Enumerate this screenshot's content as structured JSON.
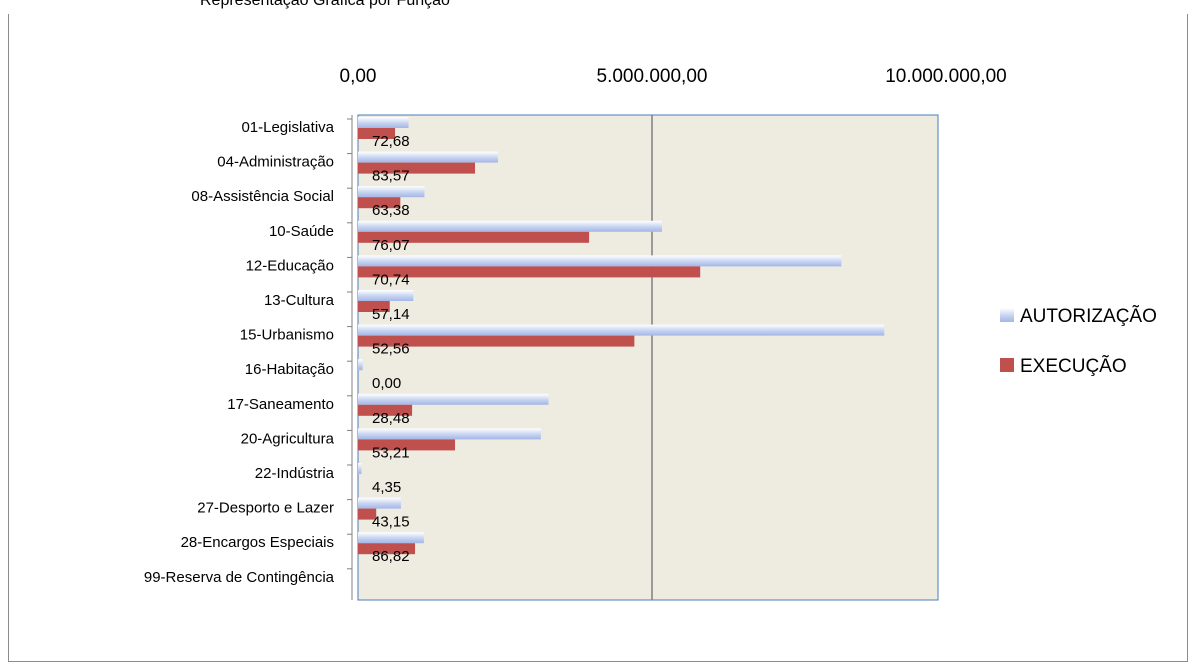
{
  "chart_data": {
    "type": "bar",
    "orientation": "horizontal",
    "title": "",
    "title_partial": "Representação Gráfica por Função",
    "x_ticks": [
      "0,00",
      "5.000.000,00",
      "10.000.000,00"
    ],
    "xlim": [
      0,
      10000000
    ],
    "grid": "vertical major lines",
    "legend_position": "right",
    "categories": [
      "01-Legislativa",
      "04-Administração",
      "08-Assistência Social",
      "10-Saúde",
      "12-Educação",
      "13-Cultura",
      "15-Urbanismo",
      "16-Habitação",
      "17-Saneamento",
      "20-Agricultura",
      "22-Indústria",
      "27-Desporto e Lazer",
      "28-Encargos Especiais",
      "99-Reserva de Contingência"
    ],
    "series": [
      {
        "name": "AUTORIZAÇÃO",
        "color": "#b3c3ea",
        "values": [
          860000,
          2380000,
          1130000,
          5170000,
          8220000,
          940000,
          8950000,
          80000,
          3240000,
          3110000,
          60000,
          730000,
          1120000,
          0
        ]
      },
      {
        "name": "EXECUÇÃO",
        "color": "#c0504d",
        "values": [
          630000,
          1990000,
          720000,
          3930000,
          5820000,
          540000,
          4700000,
          0,
          920000,
          1650000,
          0,
          310000,
          970000,
          0
        ]
      }
    ],
    "data_labels": [
      "72,68",
      "83,57",
      "63,38",
      "76,07",
      "70,74",
      "57,14",
      "52,56",
      "0,00",
      "28,48",
      "53,21",
      "4,35",
      "43,15",
      "86,82",
      ""
    ],
    "colors": {
      "plot_bg": "#eeebe1",
      "plot_border": "#4a7ebb",
      "grid": "#808080"
    }
  }
}
